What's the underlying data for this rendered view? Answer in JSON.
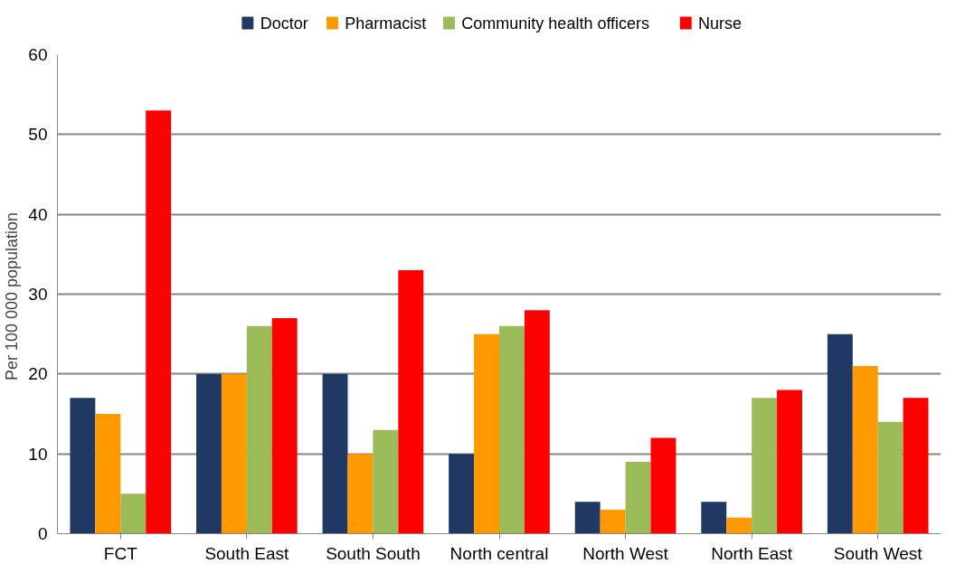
{
  "chart_data": {
    "type": "bar",
    "ylabel": "Per 100 000  population",
    "categories": [
      "FCT",
      "South East",
      "South South",
      "North central",
      "North West",
      "North East",
      "South West"
    ],
    "series": [
      {
        "name": "Doctor",
        "color": "#1f3864",
        "values": [
          17,
          20,
          20,
          10,
          4,
          4,
          25
        ]
      },
      {
        "name": "Pharmacist",
        "color": "#ff9900",
        "values": [
          15,
          20,
          10,
          25,
          3,
          2,
          21
        ]
      },
      {
        "name": "Community health officers",
        "color": "#9bbb59",
        "values": [
          5,
          26,
          13,
          26,
          9,
          17,
          14
        ]
      },
      {
        "name": "Nurse",
        "color": "#ff0000",
        "values": [
          53,
          27,
          33,
          28,
          12,
          18,
          17
        ]
      }
    ],
    "ylim": [
      0,
      60
    ],
    "yticks": [
      0,
      10,
      20,
      30,
      40,
      50,
      60
    ],
    "grid": "y",
    "legend": "top"
  }
}
